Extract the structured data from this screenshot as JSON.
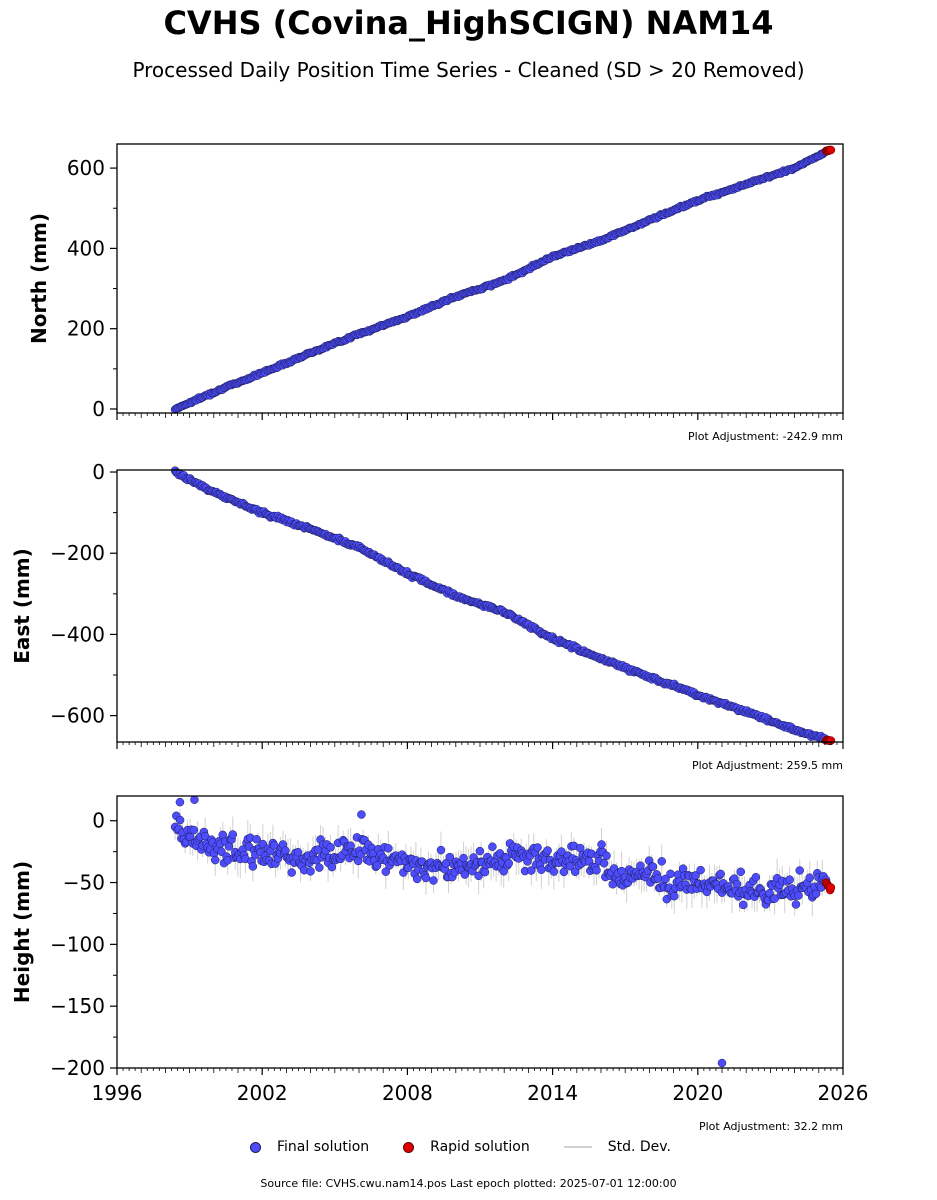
{
  "title": "CVHS (Covina_HighSCIGN) NAM14",
  "subtitle": "Processed Daily Position Time Series - Cleaned (SD > 20 Removed)",
  "legend": {
    "final": "Final solution",
    "rapid": "Rapid solution",
    "std": "Std. Dev."
  },
  "footer": "Source file: CVHS.cwu.nam14.pos  Last epoch plotted: 2025-07-01 12:00:00",
  "colors": {
    "final": "#4d4dff",
    "final_edge": "#1a1a4d",
    "rapid": "#e00000",
    "std": "#b0b0b0"
  },
  "chart_data": [
    {
      "type": "scatter",
      "ylabel": "North (mm)",
      "adjustment": "Plot Adjustment: -242.9 mm",
      "xlim": [
        1996,
        2026
      ],
      "ylim": [
        -10,
        660
      ],
      "yticks": [
        0,
        200,
        400,
        600
      ],
      "ytick_labels": [
        "0",
        "200",
        "400",
        "600"
      ],
      "series": [
        {
          "name": "Final solution",
          "x": [
            1998.4,
            2000,
            2002,
            2004,
            2006,
            2008,
            2010,
            2012,
            2014,
            2016,
            2018,
            2020,
            2022,
            2024,
            2025.3
          ],
          "y": [
            0,
            42,
            90,
            140,
            187,
            230,
            280,
            320,
            380,
            420,
            470,
            520,
            560,
            600,
            640
          ],
          "noise": 2
        },
        {
          "name": "Rapid solution",
          "x": [
            2025.3,
            2025.5
          ],
          "y": [
            643,
            645
          ],
          "noise": 1
        }
      ]
    },
    {
      "type": "scatter",
      "ylabel": "East (mm)",
      "adjustment": "Plot Adjustment: 259.5 mm",
      "xlim": [
        1996,
        2026
      ],
      "ylim": [
        -665,
        5
      ],
      "yticks": [
        0,
        -200,
        -400,
        -600
      ],
      "ytick_labels": [
        "0",
        "−200",
        "−400",
        "−600"
      ],
      "series": [
        {
          "name": "Final solution",
          "x": [
            1998.4,
            2000,
            2002,
            2004,
            2005,
            2006,
            2008,
            2010,
            2012,
            2014,
            2016,
            2018,
            2019,
            2020,
            2022,
            2024,
            2025.3
          ],
          "y": [
            0,
            -50,
            -100,
            -140,
            -165,
            -185,
            -250,
            -305,
            -345,
            -410,
            -460,
            -505,
            -525,
            -550,
            -590,
            -635,
            -658
          ],
          "noise": 3
        },
        {
          "name": "Rapid solution",
          "x": [
            2025.3,
            2025.5
          ],
          "y": [
            -660,
            -662
          ],
          "noise": 1
        }
      ]
    },
    {
      "type": "scatter",
      "ylabel": "Height (mm)",
      "adjustment": "Plot Adjustment: 32.2 mm",
      "xlim": [
        1996,
        2026
      ],
      "ylim": [
        -200,
        20
      ],
      "yticks": [
        0,
        -50,
        -100,
        -150,
        -200
      ],
      "ytick_labels": [
        "0",
        "−50",
        "−100",
        "−150",
        "−200"
      ],
      "xticks": [
        1996,
        2002,
        2008,
        2014,
        2020,
        2026
      ],
      "xtick_labels": [
        "1996",
        "2002",
        "2008",
        "2014",
        "2020",
        "2026"
      ],
      "series": [
        {
          "name": "Final solution",
          "x": [
            1998.4,
            1999,
            2000,
            2001,
            2002,
            2003,
            2004,
            2005,
            2006,
            2007,
            2008,
            2009,
            2010,
            2011,
            2012,
            2013,
            2014,
            2015,
            2016,
            2017,
            2018,
            2019,
            2020,
            2021,
            2022,
            2023,
            2024,
            2025.3
          ],
          "y": [
            0,
            -15,
            -20,
            -25,
            -25,
            -30,
            -30,
            -25,
            -22,
            -30,
            -35,
            -35,
            -38,
            -35,
            -30,
            -30,
            -32,
            -30,
            -35,
            -45,
            -45,
            -50,
            -50,
            -52,
            -55,
            -58,
            -55,
            -50
          ],
          "noise": 8
        },
        {
          "name": "Rapid solution",
          "x": [
            2025.3,
            2025.5
          ],
          "y": [
            -52,
            -55
          ],
          "noise": 2
        }
      ],
      "outliers": [
        {
          "x": 1998.6,
          "y": 15
        },
        {
          "x": 1999.2,
          "y": 17
        },
        {
          "x": 2006.1,
          "y": 5
        },
        {
          "x": 2021.0,
          "y": -196
        }
      ]
    }
  ]
}
